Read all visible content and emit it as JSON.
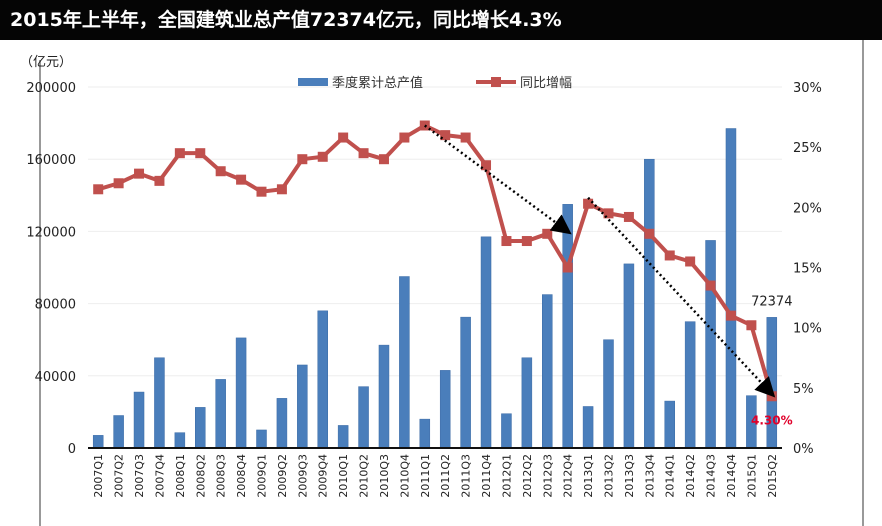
{
  "title": "2015年上半年，全国建筑业总产值72374亿元，同比增长4.3%",
  "chart_data": {
    "type": "bar+line",
    "title": "2015年上半年，全国建筑业总产值72374亿元，同比增长4.3%",
    "ylabel": "（亿元）",
    "ylim": [
      0,
      200000
    ],
    "y2lim": [
      0,
      30
    ],
    "yticks": [
      "0",
      "40000",
      "80000",
      "120000",
      "160000",
      "200000"
    ],
    "y2ticks": [
      "0%",
      "5%",
      "10%",
      "15%",
      "20%",
      "25%",
      "30%"
    ],
    "legend_position": "top-center",
    "categories": [
      "2007Q1",
      "2007Q2",
      "2007Q3",
      "2007Q4",
      "2008Q1",
      "2008Q2",
      "2008Q3",
      "2008Q4",
      "2009Q1",
      "2009Q2",
      "2009Q3",
      "2009Q4",
      "2010Q1",
      "2010Q2",
      "2010Q3",
      "2010Q4",
      "2011Q1",
      "2011Q2",
      "2011Q3",
      "2011Q4",
      "2012Q1",
      "2012Q2",
      "2012Q3",
      "2012Q4",
      "2013Q1",
      "2013Q2",
      "2013Q3",
      "2013Q4",
      "2014Q1",
      "2014Q2",
      "2014Q3",
      "2014Q4",
      "2015Q1",
      "2015Q2"
    ],
    "series": [
      {
        "name": "季度累计总产值",
        "type": "bar",
        "axis": "left",
        "color": "#4a7ebb",
        "values": [
          7000,
          18000,
          31000,
          50000,
          8500,
          22500,
          38000,
          61000,
          10000,
          27500,
          46000,
          76000,
          12500,
          34000,
          57000,
          95000,
          16000,
          43000,
          72500,
          117000,
          19000,
          50000,
          85000,
          135000,
          23000,
          60000,
          102000,
          160000,
          26000,
          70000,
          115000,
          177000,
          29000,
          72374
        ]
      },
      {
        "name": "同比增幅",
        "type": "line",
        "axis": "right",
        "color": "#c0504d",
        "values": [
          21.5,
          22,
          22.8,
          22.2,
          24.5,
          24.5,
          23,
          22.3,
          21.3,
          21.5,
          24,
          24.2,
          25.8,
          24.5,
          24,
          25.8,
          26.8,
          26,
          25.8,
          23.5,
          17.2,
          17.2,
          17.8,
          15,
          20.3,
          19.5,
          19.2,
          17.8,
          16,
          15.5,
          13.5,
          11,
          10.2,
          4.3
        ]
      }
    ],
    "annotations": [
      {
        "text": "72374",
        "category": "2015Q2",
        "series": "季度累计总产值"
      },
      {
        "text": "4.30%",
        "category": "2015Q2",
        "series": "同比增幅",
        "color": "#e0002a"
      }
    ],
    "trend_arrows": [
      {
        "from": [
          "2011Q1",
          26.8
        ],
        "to": [
          "2012Q4",
          18
        ]
      },
      {
        "from": [
          "2013Q1",
          20.8
        ],
        "to": [
          "2015Q2",
          4.5
        ]
      }
    ]
  }
}
